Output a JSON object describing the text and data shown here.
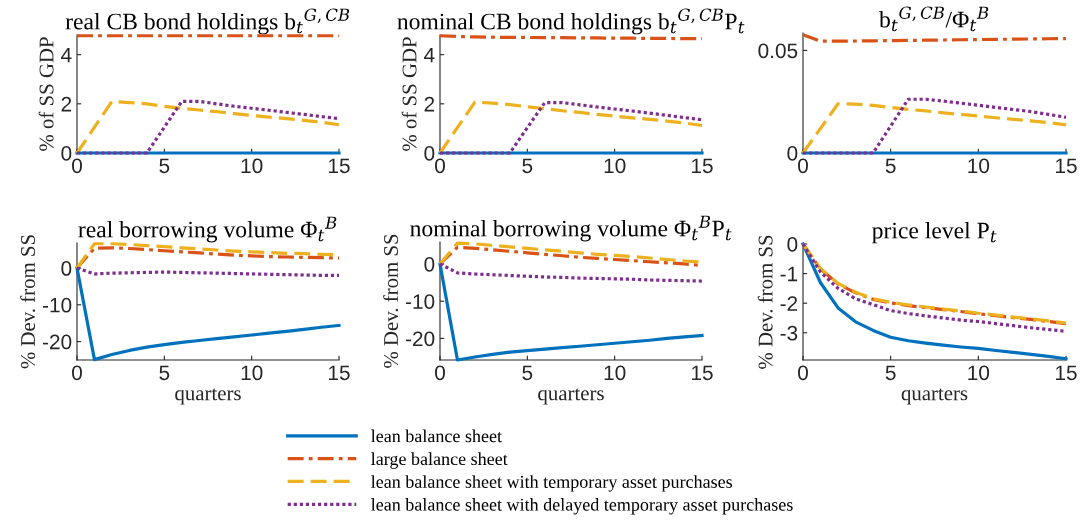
{
  "chart_data": [
    {
      "type": "line",
      "title": "real CB bond holdings b$_{t}$$^{G,CB}$",
      "ylabel": "% of SS GDP",
      "x": [
        0,
        1,
        2,
        3,
        4,
        5,
        6,
        7,
        8,
        9,
        10,
        11,
        12,
        13,
        14,
        15
      ],
      "xlim": [
        0,
        15
      ],
      "xticks": [
        0,
        5,
        10,
        15
      ],
      "ylim": [
        0,
        4.8
      ],
      "yticks": [
        0,
        2,
        4
      ],
      "grid": false,
      "legend": "bottom",
      "series": [
        {
          "name": "lean balance sheet",
          "color": "#0072bd",
          "line_style": "solid",
          "values": [
            0,
            0,
            0,
            0,
            0,
            0,
            0,
            0,
            0,
            0,
            0,
            0,
            0,
            0,
            0,
            0
          ]
        },
        {
          "name": "large balance sheet",
          "color": "#d95319",
          "line_style": "dashdot",
          "values": [
            4.77,
            4.77,
            4.77,
            4.77,
            4.77,
            4.77,
            4.77,
            4.77,
            4.77,
            4.77,
            4.77,
            4.77,
            4.77,
            4.77,
            4.77,
            4.77
          ]
        },
        {
          "name": "lean balance sheet with temporary asset purchases",
          "color": "#edb120",
          "line_style": "dashed",
          "values": [
            0,
            1.05,
            2.1,
            2.05,
            2.0,
            1.9,
            1.82,
            1.75,
            1.68,
            1.6,
            1.53,
            1.46,
            1.4,
            1.33,
            1.25,
            1.15
          ]
        },
        {
          "name": "lean balance sheet with delayed temporary asset purchases",
          "color": "#7e2f8e",
          "line_style": "dotted",
          "values": [
            0,
            0,
            0,
            0,
            0,
            1.05,
            2.1,
            2.1,
            2.0,
            1.9,
            1.82,
            1.74,
            1.65,
            1.57,
            1.48,
            1.4
          ]
        }
      ]
    },
    {
      "type": "line",
      "title": "nominal CB bond holdings b$_{t}$$^{G,CB}$P$_{t}$",
      "ylabel": "% of SS GDP",
      "x": [
        0,
        1,
        2,
        3,
        4,
        5,
        6,
        7,
        8,
        9,
        10,
        11,
        12,
        13,
        14,
        15
      ],
      "xlim": [
        0,
        15
      ],
      "xticks": [
        0,
        5,
        10,
        15
      ],
      "ylim": [
        0,
        4.8
      ],
      "yticks": [
        0,
        2,
        4
      ],
      "grid": false,
      "series": [
        {
          "color": "#0072bd",
          "line_style": "solid",
          "values": [
            0,
            0,
            0,
            0,
            0,
            0,
            0,
            0,
            0,
            0,
            0,
            0,
            0,
            0,
            0,
            0
          ]
        },
        {
          "color": "#d95319",
          "line_style": "dashdot",
          "values": [
            4.77,
            4.74,
            4.72,
            4.71,
            4.7,
            4.7,
            4.69,
            4.69,
            4.68,
            4.68,
            4.67,
            4.67,
            4.66,
            4.66,
            4.65,
            4.65
          ]
        },
        {
          "color": "#edb120",
          "line_style": "dashed",
          "values": [
            0,
            1.04,
            2.07,
            2.03,
            1.97,
            1.88,
            1.8,
            1.72,
            1.65,
            1.57,
            1.5,
            1.43,
            1.37,
            1.3,
            1.22,
            1.12
          ]
        },
        {
          "color": "#7e2f8e",
          "line_style": "dotted",
          "values": [
            0,
            0,
            0,
            0,
            0,
            1.03,
            2.05,
            2.05,
            1.96,
            1.87,
            1.79,
            1.71,
            1.62,
            1.53,
            1.44,
            1.35
          ]
        }
      ]
    },
    {
      "type": "line",
      "title": "b$_{t}$$^{G,CB}$/Φ$_{t}$$^{B}$",
      "x": [
        0,
        1,
        2,
        3,
        4,
        5,
        6,
        7,
        8,
        9,
        10,
        11,
        12,
        13,
        14,
        15
      ],
      "xlim": [
        0,
        15
      ],
      "xticks": [
        0,
        5,
        10,
        15
      ],
      "ylim": [
        0,
        0.0585
      ],
      "yticks": [
        0,
        0.05
      ],
      "grid": false,
      "series": [
        {
          "color": "#0072bd",
          "line_style": "solid",
          "values": [
            0,
            0,
            0,
            0,
            0,
            0,
            0,
            0,
            0,
            0,
            0,
            0,
            0,
            0,
            0,
            0
          ]
        },
        {
          "color": "#d95319",
          "line_style": "dashdot",
          "values": [
            0.0577,
            0.0545,
            0.0545,
            0.0546,
            0.0547,
            0.0548,
            0.0549,
            0.055,
            0.0551,
            0.0552,
            0.0553,
            0.0554,
            0.0555,
            0.0556,
            0.0557,
            0.0558
          ]
        },
        {
          "color": "#edb120",
          "line_style": "dashed",
          "values": [
            0,
            0.012,
            0.024,
            0.0238,
            0.0232,
            0.0222,
            0.0213,
            0.0205,
            0.0196,
            0.0188,
            0.018,
            0.0172,
            0.0164,
            0.0157,
            0.0148,
            0.0137
          ]
        },
        {
          "color": "#7e2f8e",
          "line_style": "dotted",
          "values": [
            0,
            0,
            0,
            0,
            0,
            0.0131,
            0.0262,
            0.0262,
            0.0253,
            0.0243,
            0.0233,
            0.0222,
            0.0212,
            0.0202,
            0.0188,
            0.0174
          ]
        }
      ]
    },
    {
      "type": "line",
      "title": "real borrowing volume Φ$_{t}$$^{B}$",
      "ylabel": "% Dev. from SS",
      "xlabel": "quarters",
      "x": [
        0,
        1,
        2,
        3,
        4,
        5,
        6,
        7,
        8,
        9,
        10,
        11,
        12,
        13,
        14,
        15
      ],
      "xlim": [
        0,
        15
      ],
      "xticks": [
        0,
        5,
        10,
        15
      ],
      "ylim": [
        -25,
        6.8
      ],
      "yticks": [
        -20,
        -10,
        0
      ],
      "grid": false,
      "series": [
        {
          "color": "#0072bd",
          "line_style": "solid",
          "values": [
            0,
            -24.9,
            -23.5,
            -22.4,
            -21.5,
            -20.8,
            -20.2,
            -19.7,
            -19.2,
            -18.7,
            -18.2,
            -17.7,
            -17.2,
            -16.7,
            -16.1,
            -15.6
          ]
        },
        {
          "color": "#d95319",
          "line_style": "dashdot",
          "values": [
            0,
            5.4,
            5.5,
            5.3,
            5.0,
            4.7,
            4.4,
            4.1,
            3.8,
            3.5,
            3.3,
            3.1,
            3.0,
            2.9,
            2.8,
            2.7
          ]
        },
        {
          "color": "#edb120",
          "line_style": "dashed",
          "values": [
            0,
            6.6,
            6.6,
            6.4,
            6.1,
            5.8,
            5.5,
            5.2,
            4.9,
            4.6,
            4.4,
            4.2,
            4.0,
            3.9,
            3.7,
            3.6
          ]
        },
        {
          "color": "#7e2f8e",
          "line_style": "dotted",
          "values": [
            0,
            -1.6,
            -1.4,
            -1.3,
            -1.2,
            -1.1,
            -1.2,
            -1.3,
            -1.4,
            -1.5,
            -1.6,
            -1.7,
            -1.8,
            -1.9,
            -2.0,
            -2.0
          ]
        }
      ]
    },
    {
      "type": "line",
      "title": "nominal borrowing volume Φ$_{t}$$^{B}$P$_{t}$",
      "ylabel": "% Dev. from SS",
      "xlabel": "quarters",
      "x": [
        0,
        1,
        2,
        3,
        4,
        5,
        6,
        7,
        8,
        9,
        10,
        11,
        12,
        13,
        14,
        15
      ],
      "xlim": [
        0,
        15
      ],
      "xticks": [
        0,
        5,
        10,
        15
      ],
      "ylim": [
        -25.8,
        5.9
      ],
      "yticks": [
        -20,
        -10,
        0
      ],
      "grid": false,
      "series": [
        {
          "color": "#0072bd",
          "line_style": "solid",
          "values": [
            0,
            -25.8,
            -25.0,
            -24.3,
            -23.7,
            -23.3,
            -22.9,
            -22.5,
            -22.1,
            -21.7,
            -21.3,
            -20.9,
            -20.5,
            -20.0,
            -19.6,
            -19.2
          ]
        },
        {
          "color": "#d95319",
          "line_style": "dashdot",
          "values": [
            0,
            4.5,
            4.2,
            3.8,
            3.4,
            3.0,
            2.6,
            2.2,
            1.8,
            1.5,
            1.2,
            0.9,
            0.6,
            0.3,
            0,
            -0.4
          ]
        },
        {
          "color": "#edb120",
          "line_style": "dashed",
          "values": [
            0,
            5.6,
            5.4,
            5.0,
            4.6,
            4.2,
            3.8,
            3.4,
            3.0,
            2.6,
            2.3,
            2.0,
            1.6,
            1.2,
            0.8,
            0.5
          ]
        },
        {
          "color": "#7e2f8e",
          "line_style": "dotted",
          "values": [
            0,
            -2.4,
            -2.7,
            -2.9,
            -3.1,
            -3.3,
            -3.5,
            -3.6,
            -3.8,
            -3.9,
            -4.0,
            -4.1,
            -4.3,
            -4.4,
            -4.5,
            -4.6
          ]
        }
      ]
    },
    {
      "type": "line",
      "title": "price level P$_{t}$",
      "ylabel": "% Dev. from SS",
      "xlabel": "quarters",
      "x": [
        0,
        1,
        2,
        3,
        4,
        5,
        6,
        7,
        8,
        9,
        10,
        11,
        12,
        13,
        14,
        15
      ],
      "xlim": [
        0,
        15
      ],
      "xticks": [
        0,
        5,
        10,
        15
      ],
      "ylim": [
        -3.92,
        0
      ],
      "yticks": [
        -3,
        -2,
        -1,
        0
      ],
      "grid": false,
      "series": [
        {
          "color": "#0072bd",
          "line_style": "solid",
          "values": [
            0,
            -1.31,
            -2.16,
            -2.63,
            -2.92,
            -3.15,
            -3.27,
            -3.35,
            -3.42,
            -3.48,
            -3.53,
            -3.6,
            -3.66,
            -3.73,
            -3.8,
            -3.88
          ]
        },
        {
          "color": "#d95319",
          "line_style": "dashdot",
          "values": [
            0,
            -0.85,
            -1.35,
            -1.65,
            -1.87,
            -1.99,
            -2.08,
            -2.15,
            -2.22,
            -2.28,
            -2.36,
            -2.42,
            -2.49,
            -2.55,
            -2.62,
            -2.69
          ]
        },
        {
          "color": "#edb120",
          "line_style": "dashed",
          "values": [
            0,
            -0.83,
            -1.33,
            -1.63,
            -1.85,
            -1.97,
            -2.06,
            -2.13,
            -2.2,
            -2.26,
            -2.34,
            -2.4,
            -2.47,
            -2.53,
            -2.6,
            -2.67
          ]
        },
        {
          "color": "#7e2f8e",
          "line_style": "dotted",
          "values": [
            0,
            -0.95,
            -1.5,
            -1.85,
            -2.05,
            -2.25,
            -2.35,
            -2.43,
            -2.5,
            -2.57,
            -2.62,
            -2.69,
            -2.76,
            -2.83,
            -2.89,
            -2.95
          ]
        }
      ]
    }
  ]
}
